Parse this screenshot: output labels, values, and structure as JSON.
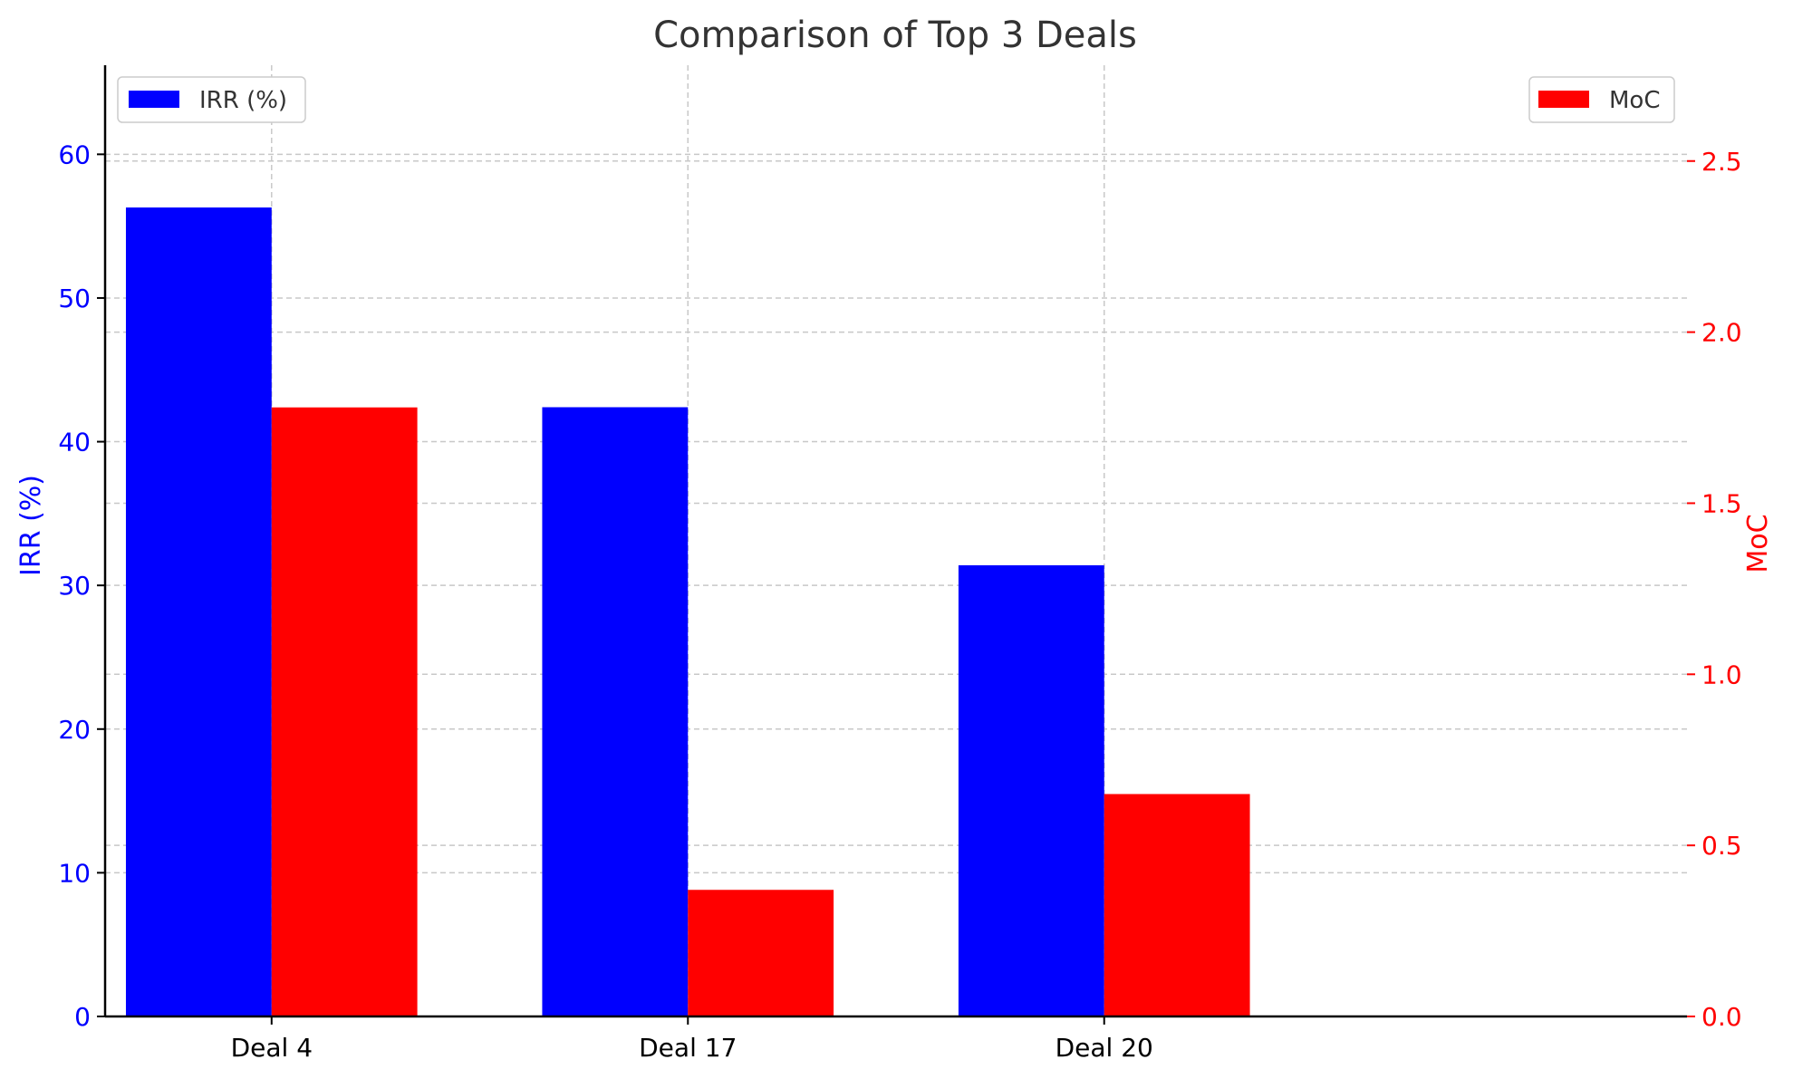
{
  "chart_data": {
    "type": "bar",
    "title": "Comparison of Top 3 Deals",
    "categories": [
      "Deal 4",
      "Deal 17",
      "Deal 20"
    ],
    "series": [
      {
        "name": "IRR (%)",
        "axis": "left",
        "color": "#0000ff",
        "values": [
          56.3,
          42.4,
          31.4
        ]
      },
      {
        "name": "MoC",
        "axis": "right",
        "color": "#ff0000",
        "values": [
          1.78,
          0.37,
          0.65
        ]
      }
    ],
    "left_axis": {
      "label": "IRR (%)",
      "color": "#0000ff",
      "ylim": [
        0,
        66.2
      ],
      "ticks": [
        "0",
        "10",
        "20",
        "30",
        "40",
        "50",
        "60"
      ]
    },
    "right_axis": {
      "label": "MoC",
      "color": "#ff0000",
      "ylim": [
        0,
        2.78
      ],
      "ticks": [
        "0.0",
        "0.5",
        "1.0",
        "1.5",
        "2.0",
        "2.5"
      ]
    },
    "grid": true,
    "legend": {
      "left_series": "top-left",
      "right_series": "top-right"
    }
  }
}
